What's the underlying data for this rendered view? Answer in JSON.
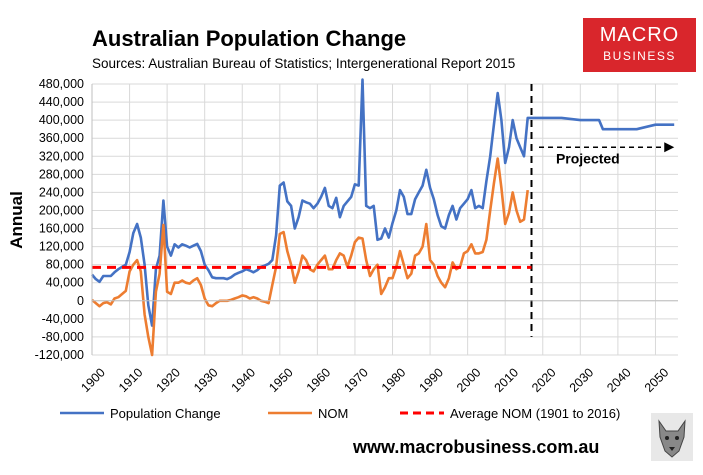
{
  "chart_data": {
    "type": "line",
    "title": "Australian Population Change",
    "subtitle": "Sources: Australian Bureau of Statistics; Intergenerational Report 2015",
    "ylabel": "Annual",
    "xlim": [
      1900,
      2056
    ],
    "ylim": [
      -120000,
      480000
    ],
    "grid": true,
    "x_ticks": [
      "1900",
      "1910",
      "1920",
      "1930",
      "1940",
      "1950",
      "1960",
      "1970",
      "1980",
      "1990",
      "2000",
      "2010",
      "2020",
      "2030",
      "2040",
      "2050"
    ],
    "x_tick_values": [
      1900,
      1910,
      1920,
      1930,
      1940,
      1950,
      1960,
      1970,
      1980,
      1990,
      2000,
      2010,
      2020,
      2030,
      2040,
      2050
    ],
    "y_ticks": [
      "-120,000",
      "-80,000",
      "-40,000",
      "0",
      "40,000",
      "80,000",
      "120,000",
      "160,000",
      "200,000",
      "240,000",
      "280,000",
      "320,000",
      "360,000",
      "400,000",
      "440,000",
      "480,000"
    ],
    "y_tick_values": [
      -120000,
      -80000,
      -40000,
      0,
      40000,
      80000,
      120000,
      160000,
      200000,
      240000,
      280000,
      320000,
      360000,
      400000,
      440000,
      480000
    ],
    "series": [
      {
        "name": "Population Change",
        "color": "#4472c4",
        "x": [
          1900,
          1901,
          1902,
          1903,
          1904,
          1905,
          1906,
          1907,
          1908,
          1909,
          1910,
          1911,
          1912,
          1913,
          1914,
          1915,
          1916,
          1917,
          1918,
          1919,
          1920,
          1921,
          1922,
          1923,
          1924,
          1925,
          1926,
          1927,
          1928,
          1929,
          1930,
          1931,
          1932,
          1933,
          1934,
          1935,
          1936,
          1937,
          1938,
          1939,
          1940,
          1941,
          1942,
          1943,
          1944,
          1945,
          1946,
          1947,
          1948,
          1949,
          1950,
          1951,
          1952,
          1953,
          1954,
          1955,
          1956,
          1957,
          1958,
          1959,
          1960,
          1961,
          1962,
          1963,
          1964,
          1965,
          1966,
          1967,
          1968,
          1969,
          1970,
          1971,
          1972,
          1973,
          1974,
          1975,
          1976,
          1977,
          1978,
          1979,
          1980,
          1981,
          1982,
          1983,
          1984,
          1985,
          1986,
          1987,
          1988,
          1989,
          1990,
          1991,
          1992,
          1993,
          1994,
          1995,
          1996,
          1997,
          1998,
          1999,
          2000,
          2001,
          2002,
          2003,
          2004,
          2005,
          2006,
          2007,
          2008,
          2009,
          2010,
          2011,
          2012,
          2013,
          2014,
          2015,
          2016,
          2017,
          2018,
          2019,
          2020,
          2025,
          2030,
          2035,
          2036,
          2040,
          2045,
          2050,
          2055
        ],
        "y": [
          58000,
          48000,
          42000,
          55000,
          55000,
          55000,
          63000,
          70000,
          75000,
          80000,
          108000,
          150000,
          170000,
          140000,
          80000,
          -10000,
          -55000,
          70000,
          100000,
          222000,
          120000,
          100000,
          125000,
          118000,
          125000,
          122000,
          118000,
          122000,
          126000,
          110000,
          80000,
          68000,
          52000,
          50000,
          50000,
          50000,
          48000,
          52000,
          58000,
          62000,
          65000,
          70000,
          67000,
          63000,
          68000,
          75000,
          78000,
          82000,
          90000,
          145000,
          255000,
          262000,
          220000,
          210000,
          160000,
          185000,
          222000,
          218000,
          215000,
          205000,
          215000,
          230000,
          250000,
          210000,
          205000,
          228000,
          185000,
          210000,
          220000,
          230000,
          258000,
          255000,
          490000,
          210000,
          205000,
          210000,
          135000,
          138000,
          160000,
          140000,
          172000,
          200000,
          245000,
          230000,
          192000,
          192000,
          225000,
          240000,
          255000,
          290000,
          250000,
          225000,
          190000,
          165000,
          160000,
          190000,
          210000,
          180000,
          205000,
          215000,
          225000,
          245000,
          205000,
          210000,
          205000,
          265000,
          320000,
          390000,
          460000,
          400000,
          305000,
          340000,
          400000,
          360000,
          340000,
          320000,
          405000,
          405000,
          405000,
          405000,
          405000,
          405000,
          400000,
          400000,
          380000,
          380000,
          380000,
          390000,
          390000
        ]
      },
      {
        "name": "NOM",
        "color": "#ed7d31",
        "x": [
          1900,
          1901,
          1902,
          1903,
          1904,
          1905,
          1906,
          1907,
          1908,
          1909,
          1910,
          1911,
          1912,
          1913,
          1914,
          1915,
          1916,
          1917,
          1918,
          1919,
          1920,
          1921,
          1922,
          1923,
          1924,
          1925,
          1926,
          1927,
          1928,
          1929,
          1930,
          1931,
          1932,
          1933,
          1934,
          1935,
          1936,
          1937,
          1938,
          1939,
          1940,
          1941,
          1942,
          1943,
          1944,
          1945,
          1946,
          1947,
          1948,
          1949,
          1950,
          1951,
          1952,
          1953,
          1954,
          1955,
          1956,
          1957,
          1958,
          1959,
          1960,
          1961,
          1962,
          1963,
          1964,
          1965,
          1966,
          1967,
          1968,
          1969,
          1970,
          1971,
          1972,
          1973,
          1974,
          1975,
          1976,
          1977,
          1978,
          1979,
          1980,
          1981,
          1982,
          1983,
          1984,
          1985,
          1986,
          1987,
          1988,
          1989,
          1990,
          1991,
          1992,
          1993,
          1994,
          1995,
          1996,
          1997,
          1998,
          1999,
          2000,
          2001,
          2002,
          2003,
          2004,
          2005,
          2006,
          2007,
          2008,
          2009,
          2010,
          2011,
          2012,
          2013,
          2014,
          2015,
          2016
        ],
        "y": [
          2000,
          -5000,
          -12000,
          -5000,
          -3000,
          -8000,
          5000,
          8000,
          15000,
          22000,
          65000,
          80000,
          90000,
          65000,
          -30000,
          -80000,
          -120000,
          20000,
          60000,
          168000,
          20000,
          15000,
          40000,
          40000,
          45000,
          40000,
          38000,
          45000,
          50000,
          35000,
          5000,
          -10000,
          -12000,
          -5000,
          0,
          0,
          0,
          2000,
          5000,
          8000,
          12000,
          10000,
          5000,
          8000,
          5000,
          0,
          -2000,
          -5000,
          35000,
          75000,
          148000,
          152000,
          110000,
          80000,
          40000,
          65000,
          100000,
          90000,
          70000,
          65000,
          80000,
          90000,
          100000,
          70000,
          70000,
          90000,
          105000,
          100000,
          75000,
          100000,
          130000,
          140000,
          138000,
          90000,
          55000,
          70000,
          80000,
          15000,
          30000,
          50000,
          50000,
          75000,
          110000,
          80000,
          50000,
          60000,
          100000,
          105000,
          120000,
          170000,
          90000,
          80000,
          55000,
          40000,
          30000,
          50000,
          85000,
          70000,
          75000,
          105000,
          110000,
          125000,
          105000,
          105000,
          108000,
          135000,
          200000,
          260000,
          315000,
          250000,
          170000,
          195000,
          240000,
          200000,
          175000,
          180000,
          245000
        ]
      },
      {
        "name": "Average NOM (1901 to 2016)",
        "color": "#ff0000",
        "dashed": true,
        "x": [
          1900,
          2017
        ],
        "y": [
          74000,
          74000
        ]
      }
    ],
    "annotations": [
      {
        "text": "Projected",
        "x": 2032,
        "y": 348000
      }
    ],
    "divider_year": 2017,
    "arrow": {
      "x_from": 2019,
      "x_to": 2055,
      "y": 340000
    }
  },
  "branding": {
    "logo_line1": "MACRO",
    "logo_line2": "BUSINESS",
    "url": "www.macrobusiness.com.au"
  }
}
